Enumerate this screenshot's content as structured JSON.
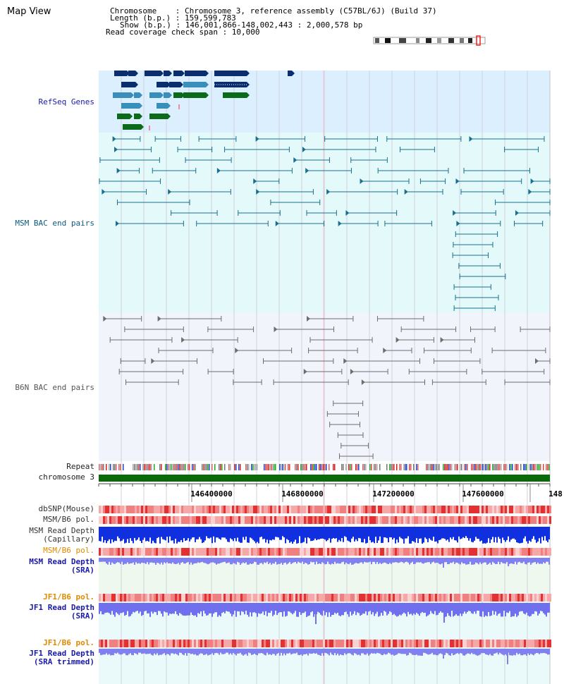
{
  "title": "Map View",
  "info": {
    "chromosome_line": "Chromosome    : Chromosome 3, reference assembly (C57BL/6J) (Build 37)",
    "length_line": "Length (b.p.) : 159,599,783",
    "show_line": "Show (b.p.) : 146,001,866-148,002,443 : 2,000,578 bp",
    "span_line": "Read coverage check span : 10,000"
  },
  "tracks": {
    "refseq": "RefSeq Genes",
    "msm_bac": "MSM BAC end pairs",
    "b6n_bac": "B6N BAC end pairs",
    "repeat": "Repeat",
    "chromosome": "chromosome 3",
    "dbsnp": "dbSNP(Mouse)",
    "msm_b6_pol_1": "MSM/B6 pol.",
    "msm_depth_cap_1": "MSM Read Depth",
    "msm_depth_cap_2": "(Capillary)",
    "msm_b6_pol_2": "MSM/B6 pol.",
    "msm_depth_sra_1": "MSM Read Depth",
    "msm_depth_sra_2": "(SRA)",
    "jf1_b6_pol_1": "JF1/B6 pol.",
    "jf1_depth_sra_1": "JF1 Read Depth",
    "jf1_depth_sra_2": "(SRA)",
    "jf1_b6_pol_2": "JF1/B6 pol.",
    "jf1_depth_trim_1": "JF1 Read Depth",
    "jf1_depth_trim_2": "(SRA trimmed)"
  },
  "axis": {
    "ticks": [
      "146400000",
      "146800000",
      "147200000",
      "147600000",
      "148"
    ]
  },
  "colors": {
    "refseq_bg": "#dcefff",
    "msm_bg": "#e4fafa",
    "b6n_bg": "#f2f4fb",
    "navy": "#0a2d6e",
    "teal": "#3a8fba",
    "green": "#0b6b1a",
    "bac_teal": "#1a6f8e",
    "bac_grey": "#6d6d6d",
    "chromosome_bar": "#0a6a0a",
    "label_navy": "#1a1aa8",
    "label_teal": "#0b5a7e",
    "label_orange": "#e08a00"
  }
}
